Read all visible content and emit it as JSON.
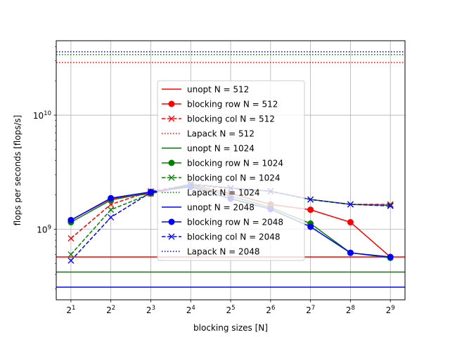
{
  "chart_data": {
    "type": "line",
    "xlabel": "blocking sizes [N]",
    "ylabel": "flops per seconds [flops/s]",
    "x_scale": "log2",
    "y_scale": "log10",
    "x": [
      2,
      4,
      8,
      16,
      32,
      64,
      128,
      256,
      512
    ],
    "x_tick_labels": [
      {
        "base": "2",
        "exp": "1"
      },
      {
        "base": "2",
        "exp": "2"
      },
      {
        "base": "2",
        "exp": "3"
      },
      {
        "base": "2",
        "exp": "4"
      },
      {
        "base": "2",
        "exp": "5"
      },
      {
        "base": "2",
        "exp": "6"
      },
      {
        "base": "2",
        "exp": "7"
      },
      {
        "base": "2",
        "exp": "8"
      },
      {
        "base": "2",
        "exp": "9"
      }
    ],
    "y_tick_labels": [
      {
        "value": 1000000000,
        "base": "10",
        "exp": "9"
      },
      {
        "value": 10000000000,
        "base": "10",
        "exp": "10"
      }
    ],
    "xlim": [
      1.55,
      660
    ],
    "ylim": [
      240000000,
      45000000000
    ],
    "grid": true,
    "legend_position": "center",
    "series": [
      {
        "name": "unopt N = 512",
        "color": "#ff0000",
        "style": "solid",
        "marker": "none",
        "constant": 570000000
      },
      {
        "name": "blocking row N = 512",
        "color": "#ff0000",
        "style": "solid",
        "marker": "circle",
        "values": [
          1200000000,
          1850000000,
          2050000000,
          2450000000,
          2050000000,
          1650000000,
          1480000000,
          1150000000,
          570000000
        ]
      },
      {
        "name": "blocking col N = 512",
        "color": "#ff0000",
        "style": "dashed",
        "marker": "x",
        "values": [
          830000000,
          1650000000,
          2150000000,
          2450000000,
          2300000000,
          2150000000,
          1820000000,
          1650000000,
          1650000000
        ]
      },
      {
        "name": "Lapack N = 512",
        "color": "#ff0000",
        "style": "dotted",
        "marker": "none",
        "constant": 29000000000
      },
      {
        "name": "unopt N = 1024",
        "color": "#008000",
        "style": "solid",
        "marker": "none",
        "constant": 420000000
      },
      {
        "name": "blocking row N = 1024",
        "color": "#008000",
        "style": "solid",
        "marker": "circle",
        "values": [
          1150000000,
          1800000000,
          2100000000,
          2400000000,
          1950000000,
          1550000000,
          1120000000,
          620000000,
          560000000
        ]
      },
      {
        "name": "blocking col N = 1024",
        "color": "#008000",
        "style": "dashed",
        "marker": "x",
        "values": [
          600000000,
          1480000000,
          2050000000,
          2500000000,
          2300000000,
          2150000000,
          1820000000,
          1650000000,
          1620000000
        ]
      },
      {
        "name": "Lapack N = 1024",
        "color": "#008000",
        "style": "dotted",
        "marker": "none",
        "constant": 34000000000
      },
      {
        "name": "unopt N = 2048",
        "color": "#0000ff",
        "style": "solid",
        "marker": "none",
        "constant": 310000000
      },
      {
        "name": "blocking row N = 2048",
        "color": "#0000ff",
        "style": "solid",
        "marker": "circle",
        "values": [
          1200000000,
          1870000000,
          2120000000,
          2350000000,
          1850000000,
          1500000000,
          1050000000,
          620000000,
          570000000
        ]
      },
      {
        "name": "blocking col N = 2048",
        "color": "#0000ff",
        "style": "dashed",
        "marker": "x",
        "values": [
          530000000,
          1270000000,
          2100000000,
          2450000000,
          2280000000,
          2150000000,
          1820000000,
          1650000000,
          1600000000
        ]
      },
      {
        "name": "Lapack N = 2048",
        "color": "#0000ff",
        "style": "dotted",
        "marker": "none",
        "constant": 36000000000
      }
    ]
  }
}
